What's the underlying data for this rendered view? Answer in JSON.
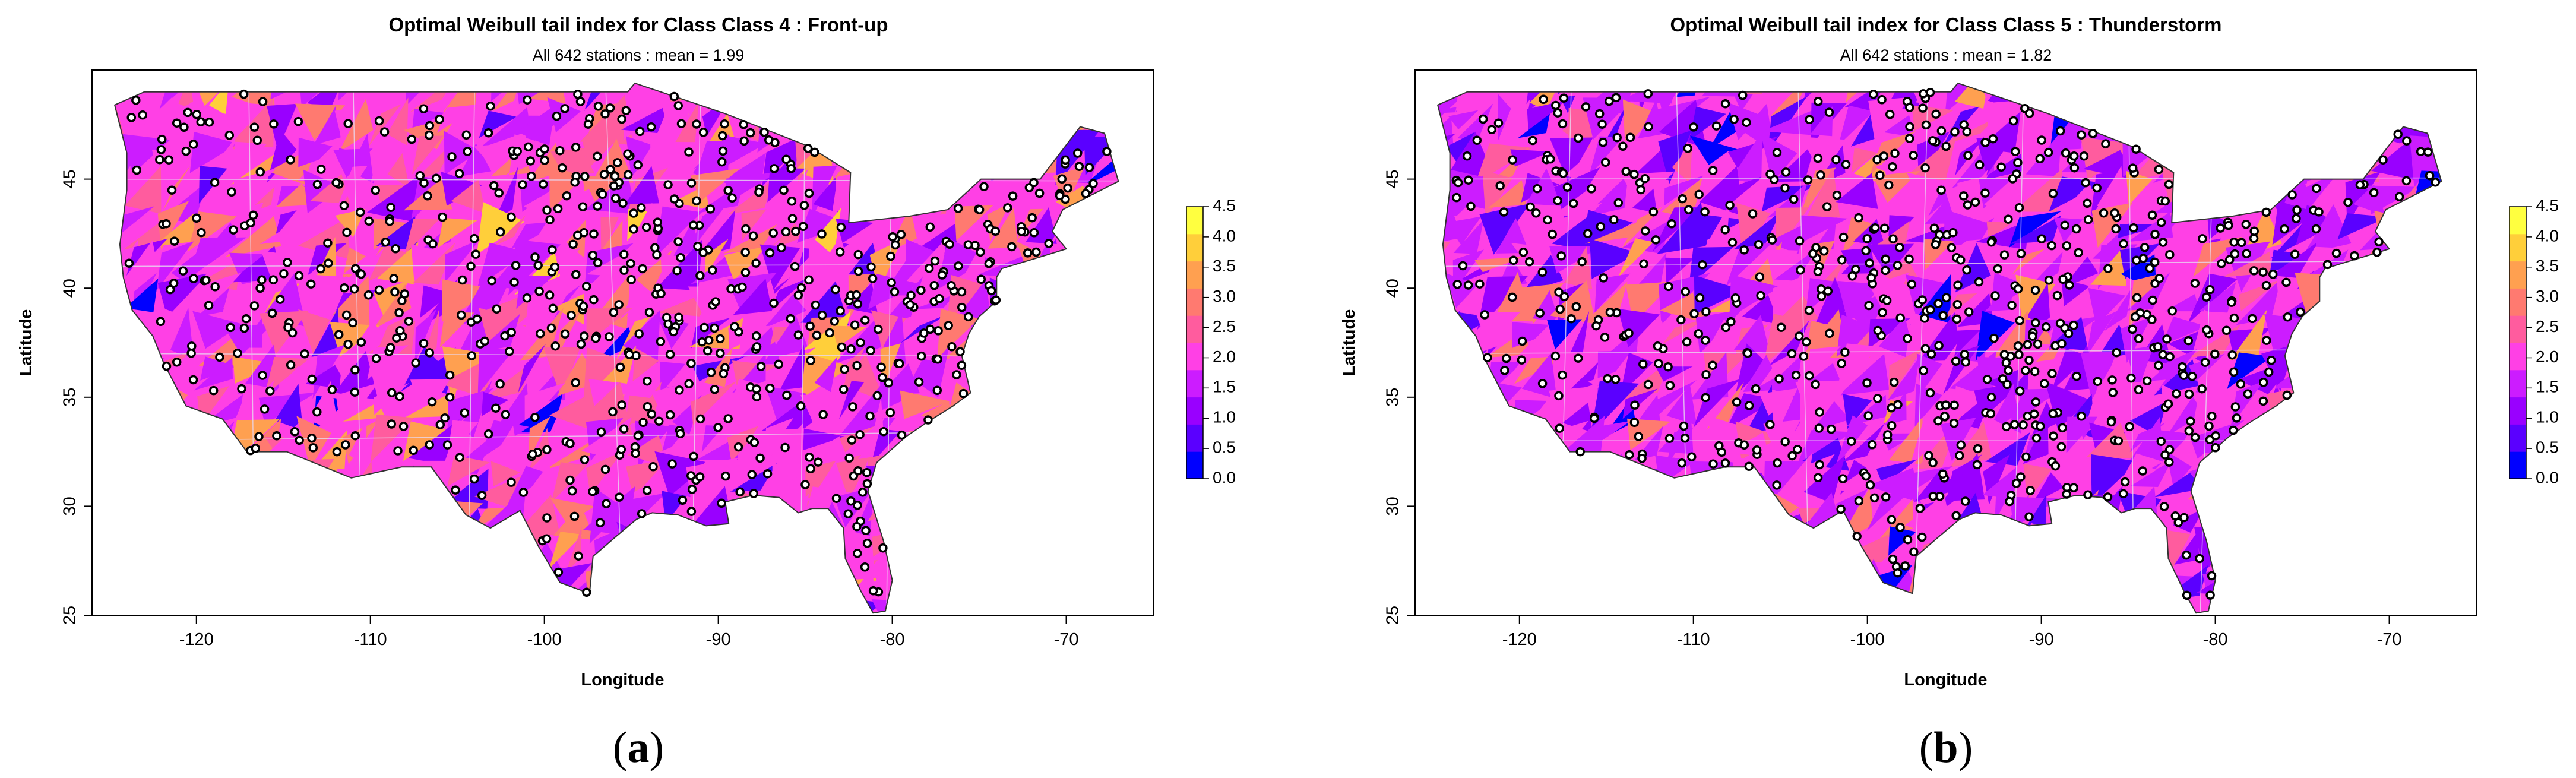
{
  "panels": [
    {
      "caption": {
        "open": "(",
        "letter": "a",
        "close": ")"
      },
      "chart_data": {
        "type": "heatmap",
        "title": "Optimal Weibull tail index for Class Class 4 : Front-up",
        "subtitle": "All 642 stations : mean = 1.99",
        "xlabel": "Longitude",
        "ylabel": "Latitude",
        "xlim": [
          -126,
          -65
        ],
        "ylim": [
          25,
          50
        ],
        "x_ticks": [
          -120,
          -110,
          -100,
          -90,
          -80,
          -70
        ],
        "y_ticks": [
          25,
          30,
          35,
          40,
          45
        ],
        "colorbar": {
          "range": [
            0.0,
            4.5
          ],
          "ticks": [
            "0.0",
            "0.5",
            "1.0",
            "1.5",
            "2.0",
            "2.5",
            "3.0",
            "3.5",
            "4.0",
            "4.5"
          ],
          "colors": [
            "#0000ff",
            "#5a00ff",
            "#9900ff",
            "#cc1cff",
            "#ff40e5",
            "#ff5c9e",
            "#ff7a70",
            "#ffa050",
            "#ffcf3a",
            "#ffff40"
          ]
        },
        "stations": 642,
        "mean": 1.99,
        "grid": false
      }
    },
    {
      "caption": {
        "open": "(",
        "letter": "b",
        "close": ")"
      },
      "chart_data": {
        "type": "heatmap",
        "title": "Optimal Weibull tail index for Class Class 5 : Thunderstorm",
        "subtitle": "All 642 stations : mean = 1.82",
        "xlabel": "Longitude",
        "ylabel": "Latitude",
        "xlim": [
          -126,
          -65
        ],
        "ylim": [
          25,
          50
        ],
        "x_ticks": [
          -120,
          -110,
          -100,
          -90,
          -80,
          -70
        ],
        "y_ticks": [
          25,
          30,
          35,
          40,
          45
        ],
        "colorbar": {
          "range": [
            0.0,
            4.5
          ],
          "ticks": [
            "0.0",
            "0.5",
            "1.0",
            "1.5",
            "2.0",
            "2.5",
            "3.0",
            "3.5",
            "4.0",
            "4.5"
          ],
          "colors": [
            "#0000ff",
            "#5a00ff",
            "#9900ff",
            "#cc1cff",
            "#ff40e5",
            "#ff5c9e",
            "#ff7a70",
            "#ffa050",
            "#ffcf3a",
            "#ffff40"
          ]
        },
        "stations": 642,
        "mean": 1.82,
        "grid": false
      }
    }
  ],
  "map_outline": [
    [
      -124.7,
      48.4
    ],
    [
      -123.0,
      49.0
    ],
    [
      -95.2,
      49.0
    ],
    [
      -94.8,
      49.4
    ],
    [
      -89.6,
      48.0
    ],
    [
      -84.8,
      46.5
    ],
    [
      -82.4,
      45.3
    ],
    [
      -82.5,
      43.0
    ],
    [
      -79.0,
      43.3
    ],
    [
      -76.8,
      43.6
    ],
    [
      -74.9,
      45.0
    ],
    [
      -71.5,
      45.0
    ],
    [
      -69.2,
      47.4
    ],
    [
      -67.8,
      47.1
    ],
    [
      -67.0,
      44.9
    ],
    [
      -70.2,
      43.6
    ],
    [
      -70.8,
      42.6
    ],
    [
      -70.0,
      41.8
    ],
    [
      -71.2,
      41.5
    ],
    [
      -73.7,
      40.9
    ],
    [
      -74.0,
      40.5
    ],
    [
      -74.0,
      39.4
    ],
    [
      -75.0,
      38.7
    ],
    [
      -75.6,
      37.9
    ],
    [
      -76.0,
      36.9
    ],
    [
      -75.5,
      35.2
    ],
    [
      -76.5,
      34.6
    ],
    [
      -77.9,
      33.9
    ],
    [
      -79.2,
      33.2
    ],
    [
      -80.9,
      32.0
    ],
    [
      -81.4,
      30.7
    ],
    [
      -80.5,
      28.4
    ],
    [
      -80.0,
      26.6
    ],
    [
      -80.4,
      25.2
    ],
    [
      -81.1,
      25.1
    ],
    [
      -81.8,
      26.1
    ],
    [
      -82.7,
      27.6
    ],
    [
      -82.8,
      29.0
    ],
    [
      -83.7,
      29.9
    ],
    [
      -84.6,
      29.9
    ],
    [
      -85.4,
      29.7
    ],
    [
      -86.5,
      30.4
    ],
    [
      -88.0,
      30.5
    ],
    [
      -89.6,
      30.2
    ],
    [
      -89.4,
      29.2
    ],
    [
      -90.7,
      29.1
    ],
    [
      -92.3,
      29.6
    ],
    [
      -93.8,
      29.7
    ],
    [
      -94.7,
      29.4
    ],
    [
      -95.9,
      28.6
    ],
    [
      -97.2,
      27.7
    ],
    [
      -97.4,
      26.0
    ],
    [
      -99.1,
      26.5
    ],
    [
      -100.3,
      28.1
    ],
    [
      -101.4,
      29.8
    ],
    [
      -103.1,
      29.0
    ],
    [
      -104.5,
      29.6
    ],
    [
      -106.5,
      31.8
    ],
    [
      -108.2,
      31.8
    ],
    [
      -111.1,
      31.3
    ],
    [
      -114.8,
      32.5
    ],
    [
      -117.1,
      32.5
    ],
    [
      -118.5,
      34.0
    ],
    [
      -120.6,
      34.6
    ],
    [
      -121.9,
      36.6
    ],
    [
      -122.5,
      37.8
    ],
    [
      -123.7,
      39.0
    ],
    [
      -124.2,
      40.5
    ],
    [
      -124.4,
      42.0
    ],
    [
      -124.0,
      44.5
    ],
    [
      -124.0,
      46.2
    ],
    [
      -124.7,
      48.4
    ]
  ]
}
